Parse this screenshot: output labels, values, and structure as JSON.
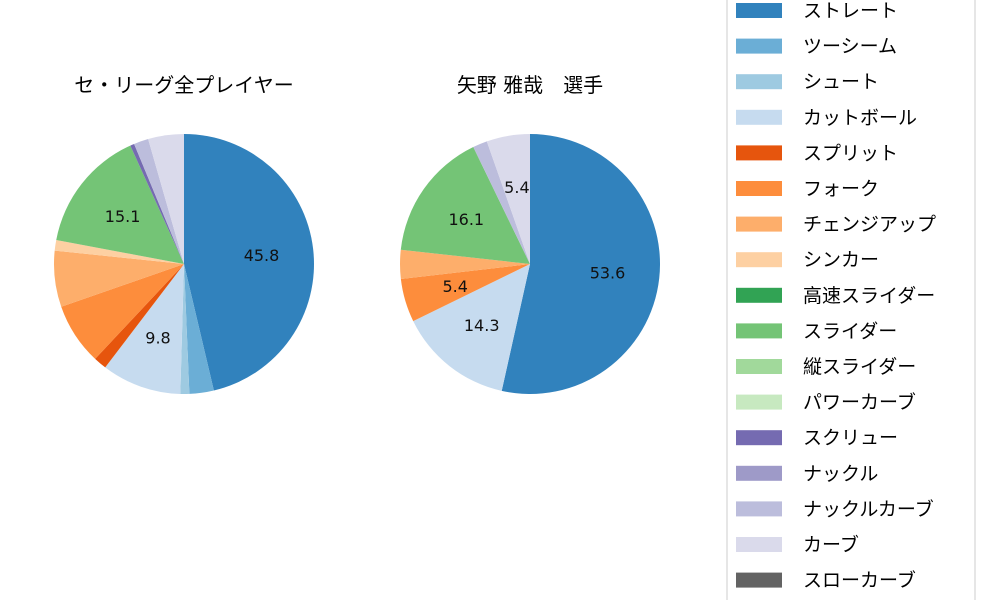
{
  "chart_data": [
    {
      "type": "pie",
      "title": "セ・リーグ全プレイヤー",
      "categories": [
        "ストレート",
        "ツーシーム",
        "シュート",
        "カットボール",
        "スプリット",
        "フォーク",
        "チェンジアップ",
        "シンカー",
        "高速スライダー",
        "スライダー",
        "縦スライダー",
        "パワーカーブ",
        "スクリュー",
        "ナックル",
        "ナックルカーブ",
        "カーブ",
        "スローカーブ"
      ],
      "values": [
        45.8,
        3.0,
        1.1,
        9.8,
        1.6,
        7.6,
        6.9,
        1.3,
        0.0,
        15.1,
        0.0,
        0.0,
        0.5,
        0.0,
        1.8,
        4.4,
        0.0
      ],
      "labels_shown": [
        "45.8",
        "",
        "",
        "9.8",
        "",
        "",
        "",
        "",
        "",
        "15.1",
        "",
        "",
        "",
        "",
        "",
        "",
        ""
      ]
    },
    {
      "type": "pie",
      "title": "矢野 雅哉　選手",
      "categories": [
        "ストレート",
        "ツーシーム",
        "シュート",
        "カットボール",
        "スプリット",
        "フォーク",
        "チェンジアップ",
        "シンカー",
        "高速スライダー",
        "スライダー",
        "縦スライダー",
        "パワーカーブ",
        "スクリュー",
        "ナックル",
        "ナックルカーブ",
        "カーブ",
        "スローカーブ"
      ],
      "values": [
        53.6,
        0.0,
        0.0,
        14.3,
        0.0,
        5.4,
        3.6,
        0.0,
        0.0,
        16.1,
        0.0,
        0.0,
        0.0,
        0.0,
        1.8,
        5.4,
        0.0
      ],
      "labels_shown": [
        "53.6",
        "",
        "",
        "14.3",
        "",
        "5.4",
        "",
        "",
        "",
        "16.1",
        "",
        "",
        "",
        "",
        "",
        "5.4",
        ""
      ]
    }
  ],
  "legend": {
    "placement": "right",
    "items": [
      {
        "label": "ストレート",
        "color": "#3182bd"
      },
      {
        "label": "ツーシーム",
        "color": "#6baed6"
      },
      {
        "label": "シュート",
        "color": "#9ecae1"
      },
      {
        "label": "カットボール",
        "color": "#c6dbef"
      },
      {
        "label": "スプリット",
        "color": "#e6550d"
      },
      {
        "label": "フォーク",
        "color": "#fd8d3c"
      },
      {
        "label": "チェンジアップ",
        "color": "#fdae6b"
      },
      {
        "label": "シンカー",
        "color": "#fdd0a2"
      },
      {
        "label": "高速スライダー",
        "color": "#31a354"
      },
      {
        "label": "スライダー",
        "color": "#74c476"
      },
      {
        "label": "縦スライダー",
        "color": "#a1d99b"
      },
      {
        "label": "パワーカーブ",
        "color": "#c7e9c0"
      },
      {
        "label": "スクリュー",
        "color": "#756bb1"
      },
      {
        "label": "ナックル",
        "color": "#9e9ac8"
      },
      {
        "label": "ナックルカーブ",
        "color": "#bcbddc"
      },
      {
        "label": "カーブ",
        "color": "#dadaeb"
      },
      {
        "label": "スローカーブ",
        "color": "#636363"
      }
    ]
  }
}
